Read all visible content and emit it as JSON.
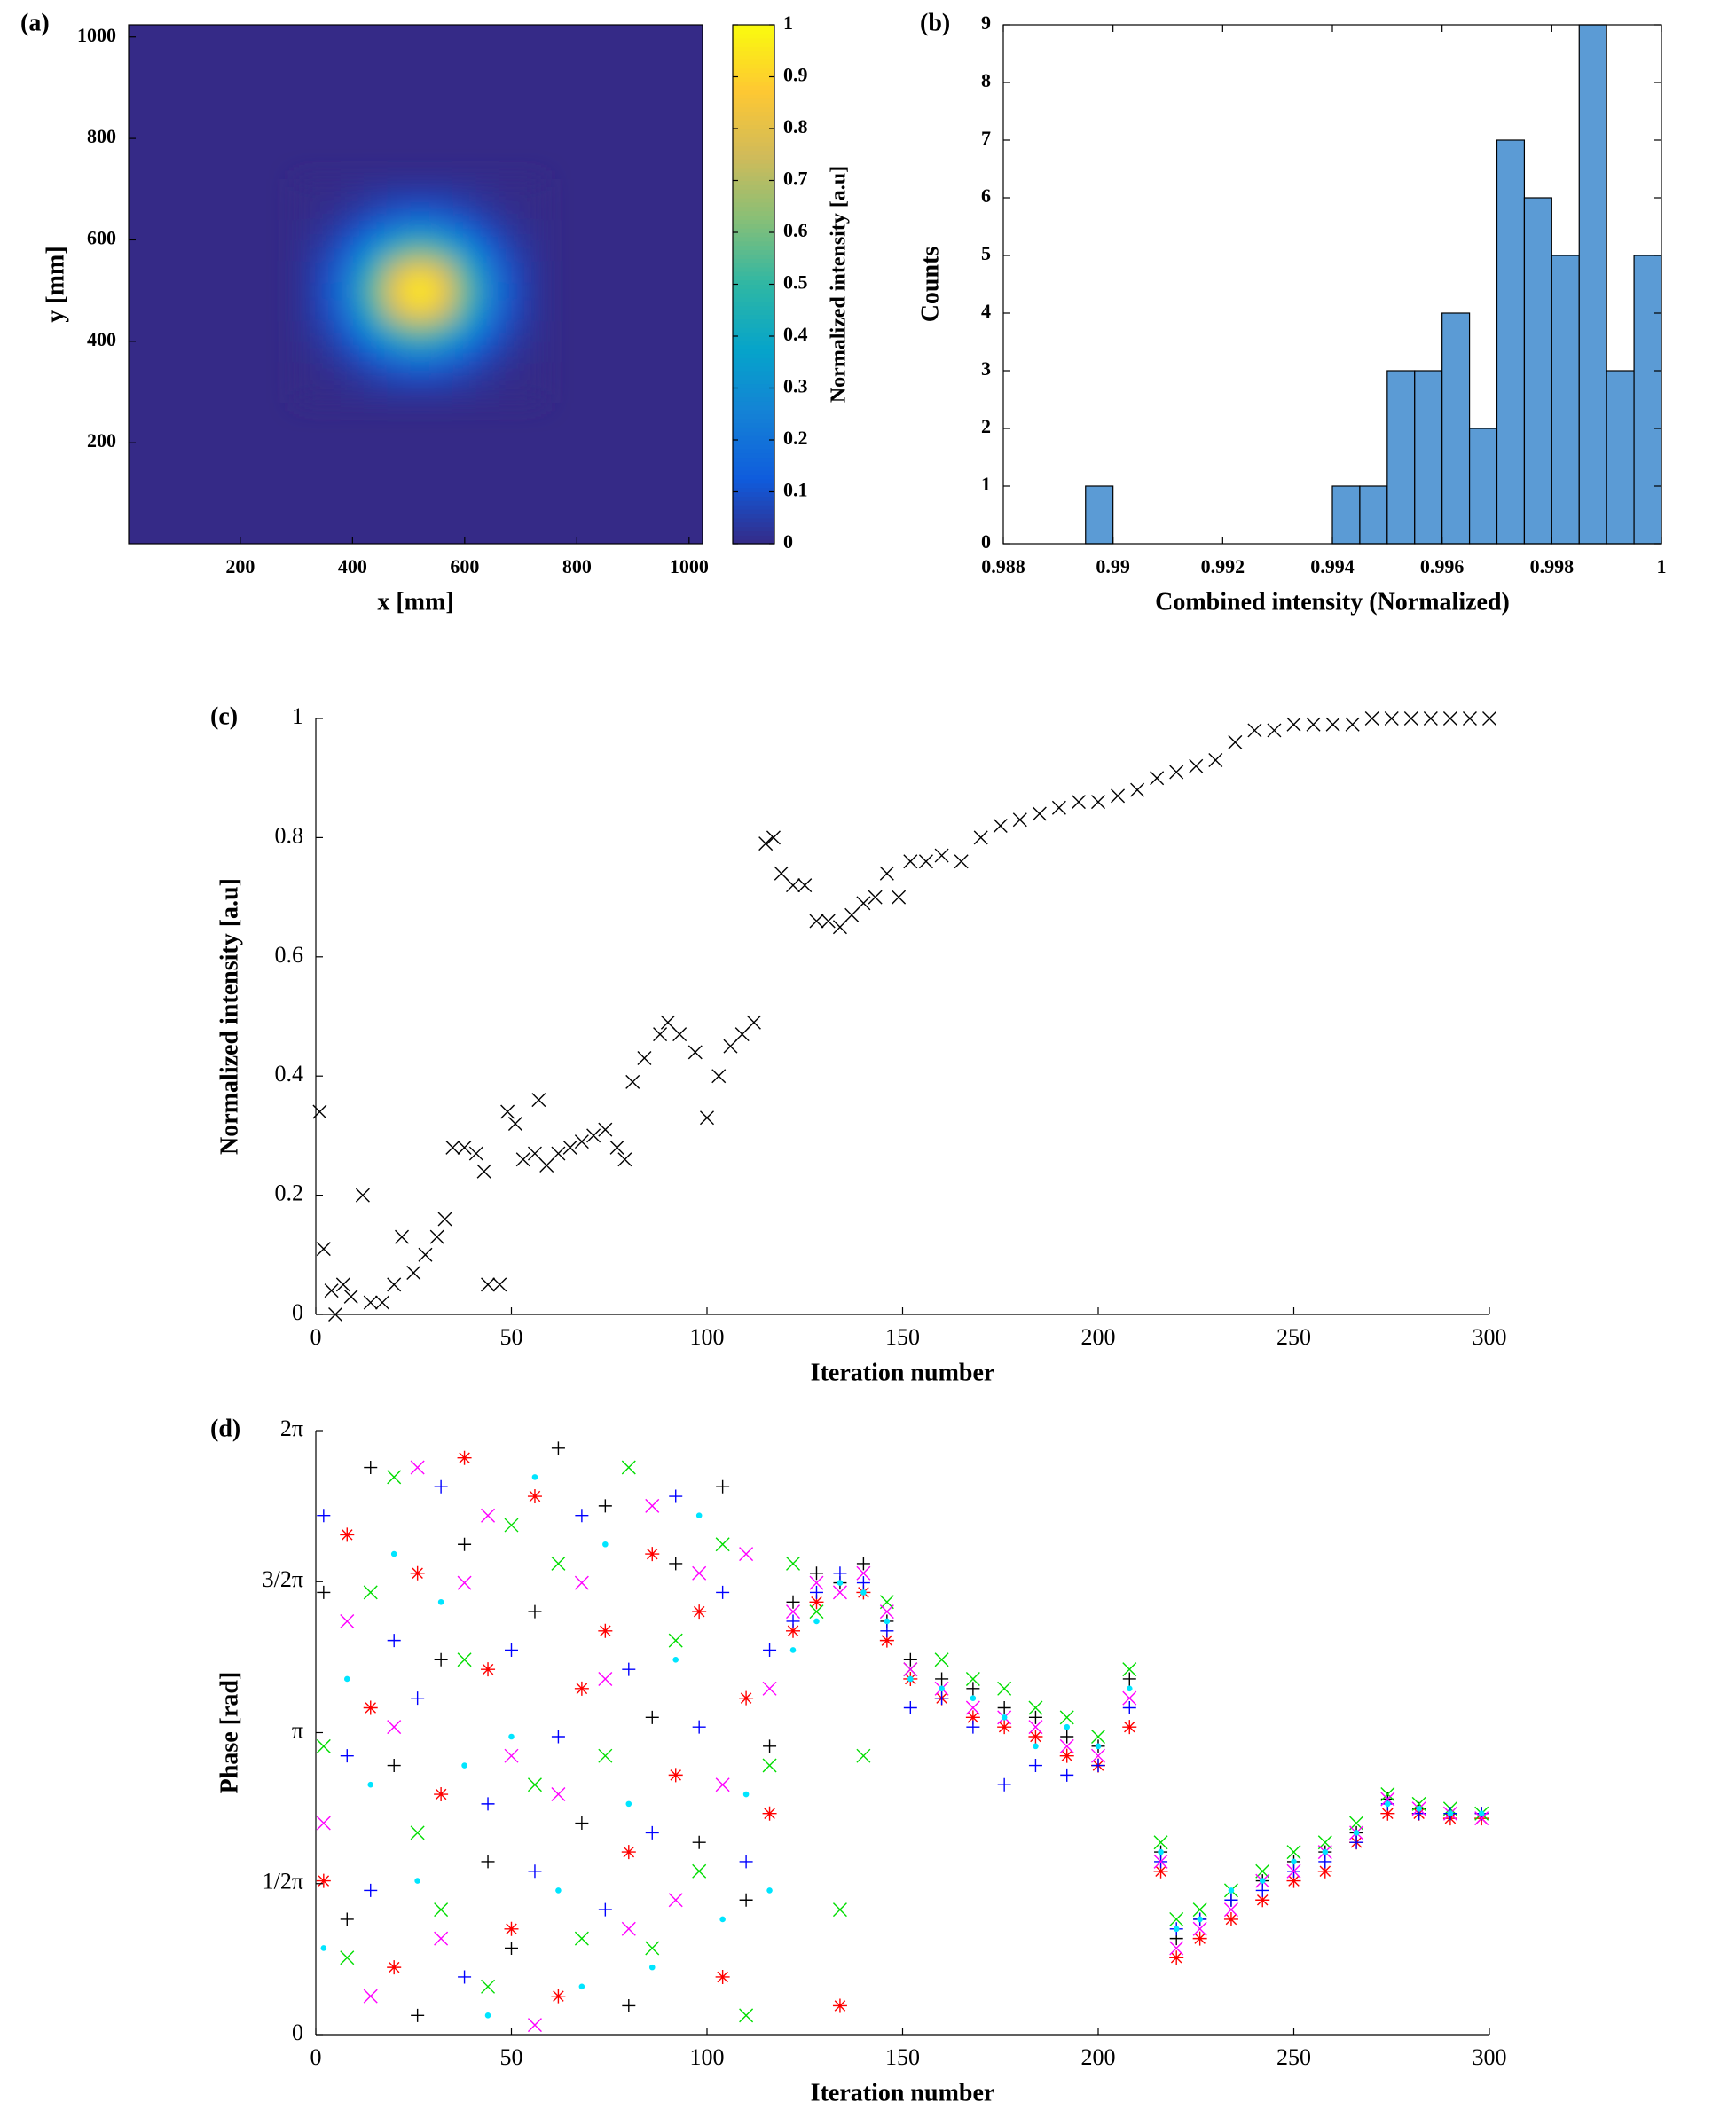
{
  "chart_data": [
    {
      "type": "heatmap",
      "label": "(a)",
      "xlabel": "x [mm]",
      "ylabel": "y [mm]",
      "colorbar_label": "Normalized intensity [a.u]",
      "colormap": "parula",
      "x": [
        320,
        360,
        400,
        440,
        480,
        520,
        560,
        600,
        640,
        680,
        720
      ],
      "y": [
        300,
        340,
        380,
        420,
        460,
        500,
        540,
        580,
        620,
        660,
        700
      ],
      "z": [
        [
          0,
          0,
          0.01,
          0.02,
          0.03,
          0.03,
          0.03,
          0.02,
          0.01,
          0,
          0
        ],
        [
          0,
          0.01,
          0.03,
          0.06,
          0.09,
          0.1,
          0.09,
          0.06,
          0.03,
          0.01,
          0
        ],
        [
          0.01,
          0.03,
          0.08,
          0.16,
          0.24,
          0.28,
          0.24,
          0.16,
          0.08,
          0.03,
          0.01
        ],
        [
          0.02,
          0.06,
          0.16,
          0.32,
          0.49,
          0.57,
          0.49,
          0.32,
          0.16,
          0.06,
          0.02
        ],
        [
          0.03,
          0.09,
          0.24,
          0.49,
          0.75,
          0.87,
          0.75,
          0.49,
          0.24,
          0.09,
          0.03
        ],
        [
          0.03,
          0.1,
          0.28,
          0.57,
          0.87,
          1,
          0.87,
          0.57,
          0.28,
          0.1,
          0.03
        ],
        [
          0.03,
          0.09,
          0.24,
          0.49,
          0.75,
          0.87,
          0.75,
          0.49,
          0.24,
          0.09,
          0.03
        ],
        [
          0.02,
          0.06,
          0.16,
          0.32,
          0.49,
          0.57,
          0.49,
          0.32,
          0.16,
          0.06,
          0.02
        ],
        [
          0.01,
          0.03,
          0.08,
          0.16,
          0.24,
          0.28,
          0.24,
          0.16,
          0.08,
          0.03,
          0.01
        ],
        [
          0,
          0.01,
          0.03,
          0.06,
          0.09,
          0.1,
          0.09,
          0.06,
          0.03,
          0.01,
          0
        ],
        [
          0,
          0,
          0.01,
          0.02,
          0.03,
          0.03,
          0.03,
          0.02,
          0.01,
          0,
          0
        ]
      ],
      "xlim": [
        1,
        1024
      ],
      "ylim": [
        1,
        1024
      ],
      "xticks": [
        200,
        400,
        600,
        800,
        1000
      ],
      "yticks": [
        200,
        400,
        600,
        800,
        1000
      ],
      "clim": [
        0,
        1
      ],
      "cticks": [
        0,
        0.1,
        0.2,
        0.3,
        0.4,
        0.5,
        0.6,
        0.7,
        0.8,
        0.9,
        1
      ]
    },
    {
      "type": "histogram",
      "label": "(b)",
      "xlabel": "Combined intensity (Normalized)",
      "ylabel": "Counts",
      "color": "#5b9bd5",
      "box": true,
      "bins": [
        0.9895,
        0.99,
        0.9905,
        0.991,
        0.9915,
        0.992,
        0.9925,
        0.993,
        0.9935,
        0.994,
        0.9945,
        0.995,
        0.9955,
        0.996,
        0.9965,
        0.997,
        0.9975,
        0.998,
        0.9985,
        0.999,
        0.9995,
        1
      ],
      "counts": [
        1,
        0,
        0,
        0,
        0,
        0,
        0,
        0,
        0,
        1,
        1,
        3,
        3,
        4,
        2,
        7,
        6,
        5,
        9,
        3,
        5
      ],
      "xlim": [
        0.988,
        1
      ],
      "xticks": [
        0.988,
        0.99,
        0.992,
        0.994,
        0.996,
        0.998,
        1
      ],
      "ylim": [
        0,
        9
      ],
      "yticks": [
        0,
        1,
        2,
        3,
        4,
        5,
        6,
        7,
        8,
        9
      ]
    },
    {
      "type": "scatter",
      "label": "(c)",
      "xlabel": "Iteration number",
      "ylabel": "Normalized intensity [a.u]",
      "box": false,
      "marker": "x",
      "color": "#000000",
      "x": [
        1,
        2,
        4,
        5,
        7,
        9,
        12,
        14,
        17,
        20,
        22,
        25,
        28,
        31,
        33,
        35,
        38,
        41,
        43,
        44,
        47,
        49,
        51,
        53,
        56,
        57,
        59,
        62,
        65,
        68,
        71,
        74,
        77,
        79,
        81,
        84,
        88,
        90,
        93,
        97,
        100,
        103,
        106,
        109,
        112,
        115,
        117,
        119,
        122,
        125,
        128,
        131,
        134,
        137,
        140,
        143,
        146,
        149,
        152,
        156,
        160,
        165,
        170,
        175,
        180,
        185,
        190,
        195,
        200,
        205,
        210,
        215,
        220,
        225,
        230,
        235,
        240,
        245,
        250,
        255,
        260,
        265,
        270,
        275,
        280,
        285,
        290,
        295,
        300
      ],
      "values": [
        0.34,
        0.11,
        0.04,
        0,
        0.05,
        0.03,
        0.2,
        0.02,
        0.02,
        0.05,
        0.13,
        0.07,
        0.1,
        0.13,
        0.16,
        0.28,
        0.28,
        0.27,
        0.24,
        0.05,
        0.05,
        0.34,
        0.32,
        0.26,
        0.27,
        0.36,
        0.25,
        0.27,
        0.28,
        0.29,
        0.3,
        0.31,
        0.28,
        0.26,
        0.39,
        0.43,
        0.47,
        0.49,
        0.47,
        0.44,
        0.33,
        0.4,
        0.45,
        0.47,
        0.49,
        0.79,
        0.8,
        0.74,
        0.72,
        0.72,
        0.66,
        0.66,
        0.65,
        0.67,
        0.69,
        0.7,
        0.74,
        0.7,
        0.76,
        0.76,
        0.77,
        0.76,
        0.8,
        0.82,
        0.83,
        0.84,
        0.85,
        0.86,
        0.86,
        0.87,
        0.88,
        0.9,
        0.91,
        0.92,
        0.93,
        0.96,
        0.98,
        0.98,
        0.99,
        0.99,
        0.99,
        0.99,
        1,
        1,
        1,
        1,
        1,
        1,
        1
      ],
      "xlim": [
        0,
        300
      ],
      "xticks": [
        0,
        50,
        100,
        150,
        200,
        250,
        300
      ],
      "ylim": [
        0,
        1
      ],
      "yticks": [
        0,
        0.2,
        0.4,
        0.6,
        0.8,
        1
      ]
    },
    {
      "type": "scatter",
      "label": "(d)",
      "xlabel": "Iteration number",
      "ylabel": "Phase [rad]",
      "box": false,
      "x": [
        2,
        8,
        14,
        20,
        26,
        32,
        38,
        44,
        50,
        56,
        62,
        68,
        74,
        80,
        86,
        92,
        98,
        104,
        110,
        116,
        122,
        128,
        134,
        140,
        146,
        152,
        160,
        168,
        176,
        184,
        192,
        200,
        208,
        216,
        220,
        226,
        234,
        242,
        250,
        258,
        266,
        274,
        282,
        290,
        298
      ],
      "series": [
        {
          "color": "#000000",
          "marker": "+",
          "values": [
            4.6,
            1.2,
            5.9,
            2.8,
            0.2,
            3.9,
            5.1,
            1.8,
            0.9,
            4.4,
            6.1,
            2.2,
            5.5,
            0.3,
            3.3,
            4.9,
            2.0,
            5.7,
            1.4,
            3.0,
            4.5,
            4.8,
            4.7,
            4.9,
            4.3,
            3.9,
            3.7,
            3.6,
            3.4,
            3.3,
            3.1,
            3.0,
            3.7,
            1.9,
            1.0,
            1.2,
            1.4,
            1.6,
            1.8,
            1.9,
            2.1,
            2.45,
            2.35,
            2.3,
            2.3
          ]
        },
        {
          "color": "#ff0000",
          "marker": "*",
          "values": [
            1.6,
            5.2,
            3.4,
            0.7,
            4.8,
            2.5,
            6.0,
            3.8,
            1.1,
            5.6,
            0.4,
            3.6,
            4.2,
            1.9,
            5.0,
            2.7,
            4.4,
            0.6,
            3.5,
            2.3,
            4.2,
            4.5,
            0.3,
            4.6,
            4.1,
            3.7,
            3.5,
            3.3,
            3.2,
            3.1,
            2.9,
            2.8,
            3.2,
            1.7,
            0.8,
            1.0,
            1.2,
            1.4,
            1.6,
            1.7,
            2.0,
            2.3,
            2.3,
            2.25,
            2.25
          ]
        },
        {
          "color": "#00dd00",
          "marker": "x",
          "values": [
            3.0,
            0.8,
            4.6,
            5.8,
            2.1,
            1.3,
            3.9,
            0.5,
            5.3,
            2.6,
            4.9,
            1.0,
            2.9,
            5.9,
            0.9,
            4.1,
            1.7,
            5.1,
            0.2,
            2.8,
            4.9,
            4.4,
            1.3,
            2.9,
            4.5,
            3.8,
            3.9,
            3.7,
            3.6,
            3.4,
            3.3,
            3.1,
            3.8,
            2.0,
            1.2,
            1.3,
            1.5,
            1.7,
            1.9,
            2.0,
            2.2,
            2.5,
            2.4,
            2.35,
            2.3
          ]
        },
        {
          "color": "#0000ff",
          "marker": "+",
          "values": [
            5.4,
            2.9,
            1.5,
            4.1,
            3.5,
            5.7,
            0.6,
            2.4,
            4.0,
            1.7,
            3.1,
            5.4,
            1.3,
            3.8,
            2.1,
            5.6,
            3.2,
            4.6,
            1.8,
            4.0,
            4.3,
            4.6,
            4.8,
            4.7,
            4.2,
            3.4,
            3.5,
            3.2,
            2.6,
            2.8,
            2.7,
            2.8,
            3.4,
            1.8,
            1.1,
            1.2,
            1.4,
            1.5,
            1.7,
            1.8,
            2.0,
            2.4,
            2.3,
            2.3,
            2.3
          ]
        },
        {
          "color": "#ff00ff",
          "marker": "x",
          "values": [
            2.2,
            4.3,
            0.4,
            3.2,
            5.9,
            1.0,
            4.7,
            5.4,
            2.9,
            0.1,
            2.5,
            4.7,
            3.7,
            1.1,
            5.5,
            1.4,
            4.8,
            2.6,
            5.0,
            3.6,
            4.4,
            4.7,
            4.6,
            4.8,
            4.4,
            3.8,
            3.6,
            3.4,
            3.3,
            3.2,
            3.0,
            2.9,
            3.5,
            1.8,
            0.9,
            1.1,
            1.3,
            1.6,
            1.7,
            1.9,
            2.1,
            2.45,
            2.35,
            2.3,
            2.25
          ]
        },
        {
          "color": "#00e5ff",
          "marker": ".",
          "values": [
            0.9,
            3.7,
            2.6,
            5.0,
            1.6,
            4.5,
            2.8,
            0.2,
            3.1,
            5.8,
            1.5,
            0.5,
            5.1,
            2.4,
            0.7,
            3.9,
            5.4,
            1.2,
            2.5,
            1.5,
            4.0,
            4.3,
            4.7,
            4.6,
            4.3,
            3.7,
            3.6,
            3.5,
            3.3,
            3.0,
            3.2,
            3.0,
            3.6,
            1.9,
            1.1,
            1.2,
            1.5,
            1.6,
            1.8,
            1.9,
            2.1,
            2.4,
            2.35,
            2.3,
            2.3
          ]
        }
      ],
      "xlim": [
        0,
        300
      ],
      "xticks": [
        0,
        50,
        100,
        150,
        200,
        250,
        300
      ],
      "ylim": [
        0,
        6.2832
      ],
      "yticks": [
        0,
        {
          "value": 1.5708,
          "label": "1/2π"
        },
        {
          "value": 3.1416,
          "label": "π"
        },
        {
          "value": 4.7124,
          "label": "3/2π"
        },
        {
          "value": 6.2832,
          "label": "2π"
        }
      ]
    }
  ]
}
